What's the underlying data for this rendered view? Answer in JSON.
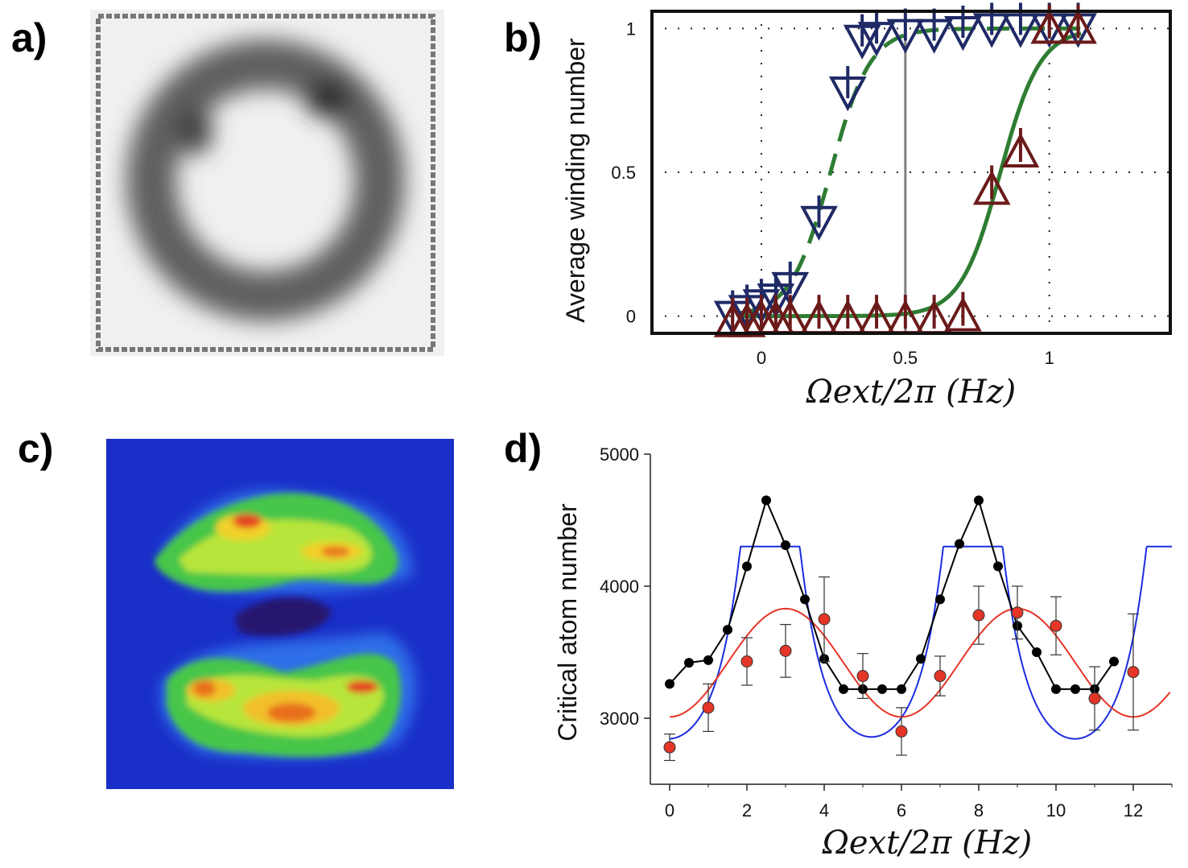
{
  "panels": {
    "a": {
      "label": "a)"
    },
    "b": {
      "label": "b)"
    },
    "c": {
      "label": "c)"
    },
    "d": {
      "label": "d)"
    }
  },
  "chart_data": [
    {
      "id": "b",
      "type": "scatter",
      "title": "",
      "xlabel": "Ωext/2π (Hz)",
      "ylabel": "Average winding number",
      "xlim": [
        -0.38,
        1.42
      ],
      "ylim": [
        -0.06,
        1.06
      ],
      "xticks": [
        0,
        0.5,
        1
      ],
      "xtick_labels": [
        "0",
        "0.5",
        "1"
      ],
      "yticks": [
        0,
        0.5,
        1
      ],
      "ytick_labels": [
        "0",
        "0.5",
        "1"
      ],
      "grid": "dotted",
      "vline_x": 0.5,
      "series": [
        {
          "name": "down",
          "marker": "triangle-down",
          "color": "#1f2a66",
          "x": [
            -0.1,
            -0.05,
            0.0,
            0.05,
            0.1,
            0.2,
            0.3,
            0.35,
            0.4,
            0.5,
            0.6,
            0.7,
            0.8,
            0.9,
            1.0,
            1.1
          ],
          "y": [
            0.0,
            0.02,
            0.04,
            0.06,
            0.1,
            0.33,
            0.78,
            0.96,
            0.97,
            0.98,
            0.98,
            0.99,
            1.0,
            1.0,
            1.0,
            1.0
          ]
        },
        {
          "name": "up",
          "marker": "triangle-up",
          "color": "#6b1a1a",
          "x": [
            -0.1,
            -0.05,
            0.0,
            0.05,
            0.1,
            0.2,
            0.3,
            0.4,
            0.5,
            0.6,
            0.7,
            0.8,
            0.9,
            1.0,
            1.1
          ],
          "y": [
            -0.02,
            -0.02,
            -0.01,
            -0.01,
            -0.01,
            -0.01,
            -0.01,
            -0.01,
            -0.01,
            -0.01,
            0.0,
            0.44,
            0.57,
            1.0,
            1.0
          ]
        },
        {
          "name": "fit-down",
          "style": "dashed",
          "color": "#2e7d32",
          "x0": 0.24,
          "k": 14.5
        },
        {
          "name": "fit-up",
          "style": "solid",
          "color": "#2e7d32",
          "x0": 0.83,
          "k": 14.5
        }
      ]
    },
    {
      "id": "d",
      "type": "line",
      "title": "",
      "xlabel": "Ωext/2π (Hz)",
      "ylabel": "Critical atom number",
      "xlim": [
        -0.5,
        13
      ],
      "ylim": [
        2500,
        5000
      ],
      "xticks": [
        0,
        2,
        4,
        6,
        8,
        10,
        12
      ],
      "yticks": [
        3000,
        4000,
        5000
      ],
      "grid": "off",
      "series": [
        {
          "name": "black",
          "marker": "circle",
          "color": "#000000",
          "x": [
            0,
            0.5,
            1,
            1.5,
            2,
            2.5,
            3,
            3.5,
            4,
            4.5,
            5,
            5.5,
            6,
            6.5,
            7,
            7.5,
            8,
            8.5,
            9,
            9.5,
            10,
            10.5,
            11,
            11.5
          ],
          "y": [
            3260,
            3420,
            3440,
            3670,
            4150,
            4650,
            4310,
            3900,
            3450,
            3220,
            3220,
            3220,
            3220,
            3450,
            3900,
            4320,
            4650,
            4150,
            3700,
            3500,
            3220,
            3220,
            3220,
            3430
          ]
        },
        {
          "name": "red-data",
          "marker": "circle",
          "color": "#e53527",
          "x": [
            0,
            1,
            2,
            3,
            4,
            5,
            6,
            7,
            8,
            9,
            10,
            11,
            12
          ],
          "y": [
            2780,
            3080,
            3430,
            3510,
            3750,
            3320,
            2900,
            3320,
            3780,
            3800,
            3700,
            3150,
            3350
          ],
          "err": [
            100,
            180,
            180,
            200,
            320,
            170,
            180,
            150,
            220,
            200,
            220,
            240,
            440
          ]
        },
        {
          "name": "blue-fit",
          "style": "solid",
          "color": "#1a2de0",
          "peaks": [
            2.6,
            7.85
          ],
          "ymin": 2830,
          "ymax": 4300
        },
        {
          "name": "red-fit",
          "style": "solid",
          "color": "#e53527",
          "ymean": 3420,
          "amp": 410,
          "period": 6.0,
          "phase": 3.0
        }
      ]
    }
  ]
}
